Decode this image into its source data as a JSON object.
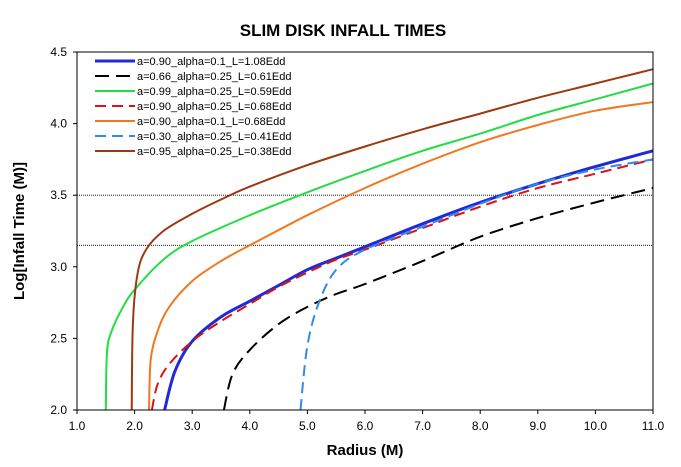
{
  "chart_data": {
    "type": "line",
    "title": "SLIM DISK INFALL TIMES",
    "xlabel": "Radius (M)",
    "ylabel": "Log[Infall Time (M)]",
    "xlim": [
      1.0,
      11.0
    ],
    "ylim": [
      2.0,
      4.5
    ],
    "xticks": [
      "1.0",
      "2.0",
      "3.0",
      "4.0",
      "5.0",
      "6.0",
      "7.0",
      "8.0",
      "9.0",
      "10.0",
      "11.0"
    ],
    "yticks": [
      "2.0",
      "2.5",
      "3.0",
      "3.5",
      "4.0",
      "4.5"
    ],
    "legend_position": "top-left",
    "reference_lines": [
      3.5,
      3.15
    ],
    "series": [
      {
        "name": "a=0.90_alpha=0.1_L=1.08Edd",
        "color": "#1f2bd6",
        "dash": "solid",
        "width": 3,
        "x": [
          2.52,
          2.7,
          3.0,
          3.5,
          4.0,
          4.5,
          5.0,
          5.5,
          6.0,
          7.0,
          8.0,
          9.0,
          10.0,
          11.0
        ],
        "y": [
          2.0,
          2.27,
          2.48,
          2.65,
          2.76,
          2.87,
          2.98,
          3.06,
          3.14,
          3.3,
          3.45,
          3.58,
          3.7,
          3.81
        ]
      },
      {
        "name": "a=0.66_alpha=0.25_L=0.61Edd",
        "color": "#000000",
        "dash": "long",
        "width": 2,
        "x": [
          3.55,
          3.7,
          4.0,
          4.5,
          5.0,
          5.5,
          6.0,
          7.0,
          8.0,
          9.0,
          10.0,
          11.0
        ],
        "y": [
          2.0,
          2.25,
          2.42,
          2.6,
          2.72,
          2.81,
          2.88,
          3.04,
          3.21,
          3.34,
          3.45,
          3.55
        ]
      },
      {
        "name": "a=0.99_alpha=0.25_L=0.59Edd",
        "color": "#22dd44",
        "dash": "solid",
        "width": 2,
        "x": [
          1.5,
          1.52,
          1.6,
          1.8,
          2.0,
          2.5,
          3.0,
          4.0,
          5.0,
          6.0,
          7.0,
          8.0,
          9.0,
          10.0,
          11.0
        ],
        "y": [
          2.0,
          2.4,
          2.55,
          2.72,
          2.84,
          3.05,
          3.18,
          3.36,
          3.52,
          3.67,
          3.81,
          3.93,
          4.06,
          4.17,
          4.28
        ]
      },
      {
        "name": "a=0.90_alpha=0.25_L=0.68Edd",
        "color": "#dd1111",
        "dash": "dash",
        "width": 2,
        "x": [
          2.3,
          2.4,
          2.6,
          3.0,
          3.5,
          4.0,
          4.5,
          5.0,
          5.5,
          6.0,
          7.0,
          8.0,
          9.0,
          10.0,
          11.0
        ],
        "y": [
          2.0,
          2.18,
          2.32,
          2.48,
          2.62,
          2.74,
          2.86,
          2.96,
          3.05,
          3.12,
          3.27,
          3.42,
          3.55,
          3.65,
          3.75
        ]
      },
      {
        "name": "a=0.90_alpha=0.1_L=0.68Edd",
        "color": "#f07820",
        "dash": "solid",
        "width": 2,
        "x": [
          2.25,
          2.28,
          2.4,
          2.6,
          3.0,
          3.5,
          4.0,
          5.0,
          6.0,
          7.0,
          8.0,
          9.0,
          10.0,
          11.0
        ],
        "y": [
          2.0,
          2.35,
          2.55,
          2.72,
          2.9,
          3.04,
          3.15,
          3.36,
          3.55,
          3.72,
          3.87,
          3.99,
          4.09,
          4.15
        ]
      },
      {
        "name": "a=0.30_alpha=0.25_L=0.41Edd",
        "color": "#3388ee",
        "dash": "dash",
        "width": 2,
        "x": [
          4.88,
          5.0,
          5.2,
          5.5,
          6.0,
          7.0,
          8.0,
          9.0,
          10.0,
          11.0
        ],
        "y": [
          2.0,
          2.45,
          2.75,
          2.98,
          3.12,
          3.28,
          3.44,
          3.58,
          3.68,
          3.75
        ]
      },
      {
        "name": "a=0.95_alpha=0.25_L=0.38Edd",
        "color": "#9b3a10",
        "dash": "solid",
        "width": 2,
        "x": [
          1.95,
          1.97,
          2.05,
          2.2,
          2.5,
          3.0,
          3.5,
          4.0,
          5.0,
          6.0,
          7.0,
          8.0,
          9.0,
          10.0,
          11.0
        ],
        "y": [
          2.0,
          2.6,
          2.95,
          3.12,
          3.25,
          3.37,
          3.47,
          3.56,
          3.71,
          3.84,
          3.96,
          4.07,
          4.18,
          4.28,
          4.38
        ]
      }
    ]
  }
}
